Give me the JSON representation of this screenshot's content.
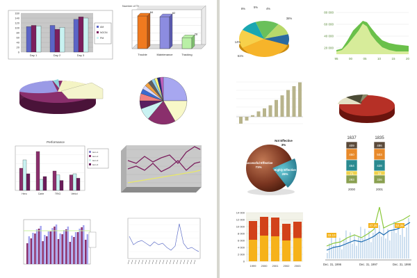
{
  "colors": {
    "blue": "#5b64c6",
    "purple": "#7b1f5e",
    "cyan": "#8ee8ee",
    "orange": "#f07a1f",
    "green": "#66c24a",
    "lightgreen": "#9adb72",
    "gold": "#f3b21b",
    "red": "#d24b1a",
    "teal": "#1aa7b1",
    "olive": "#b8b48c",
    "darkred": "#b63026"
  },
  "tl_bar": {
    "ticks": [
      "160",
      "140",
      "120",
      "100",
      "80",
      "60",
      "40",
      "20",
      "0"
    ],
    "categories": [
      "Day 1",
      "Day 2",
      "Day 3"
    ],
    "legend": [
      "AM",
      "NOON",
      "PM"
    ],
    "values": [
      [
        105,
        110,
        108
      ],
      [
        110,
        94,
        102
      ],
      [
        135,
        145,
        140
      ]
    ]
  },
  "bar3d": {
    "ylabel": "Number of Times",
    "categories": [
      "Trouble",
      "Maintenance",
      "Tracking"
    ],
    "labels": [
      "84",
      "82",
      "28"
    ],
    "values": [
      84,
      82,
      28
    ]
  },
  "pie_tr": {
    "labels": [
      "8%",
      "4%",
      "14%",
      "61%",
      "5%",
      "38%"
    ]
  },
  "area_tr": {
    "ticks": [
      "80 000",
      "60 000",
      "40 000",
      "20 000"
    ],
    "xticks": [
      "95",
      "00",
      "05",
      "10",
      "15",
      "20"
    ]
  },
  "bar_mid": {
    "values": [
      -18,
      -10,
      4,
      14,
      22,
      30,
      44,
      56,
      70,
      80,
      90
    ]
  },
  "perf": {
    "title": "Performance",
    "categories": [
      "Hero",
      "Carte",
      "TRIG",
      "Vehicl"
    ],
    "legend": [
      "item-1",
      "item-2",
      "item-3",
      "item-4"
    ]
  },
  "sphere": {
    "big_label": "Successful Effective",
    "big_pct": "71%",
    "mid_label": "Highly Effective",
    "mid_pct": "26%",
    "small_label": "Not Effective",
    "small_pct": "3%"
  },
  "stack": {
    "years": [
      "1637",
      "1835"
    ],
    "col1": [
      "409",
      "450",
      "464",
      "71",
      "293"
    ],
    "col2": [
      "486",
      "503",
      "428",
      "18",
      "336"
    ],
    "foot": [
      "2000",
      "2001"
    ]
  },
  "orange_bars": {
    "ticks": [
      "14 000",
      "12 000",
      "10 000",
      "8 000",
      "6 000",
      "4 000",
      "2 000",
      "0"
    ],
    "years": [
      "1999",
      "2000",
      "2001",
      "2002",
      "2003"
    ]
  },
  "stock": {
    "labels": [
      "33.13",
      "47.25",
      "52.26"
    ],
    "dates": [
      "Dec. 31, 1996",
      "Dec. 31, 1997",
      "Dec. 31, 1998"
    ]
  }
}
